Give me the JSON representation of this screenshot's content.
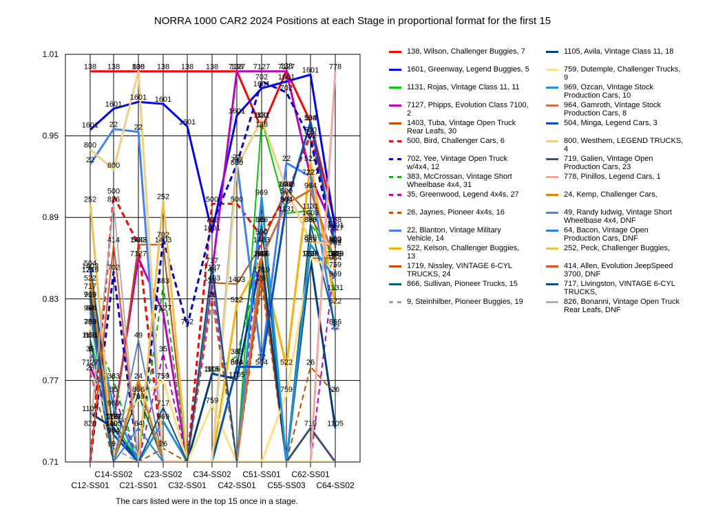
{
  "chart_data": {
    "type": "line",
    "title": "NORRA 1000 CAR2 2024  Positions at each Stage in proportional format for the first 15",
    "footnote": "The cars listed were in the top 15 once in a stage.",
    "categories": [
      "C12-SS01",
      "C14-SS02",
      "C21-SS01",
      "C23-SS02",
      "C32-SS01",
      "C34-SS02",
      "C42-SS01",
      "C51-SS01",
      "C55-SS03",
      "C62-SS01",
      "C64-SS02"
    ],
    "yticks": [
      "1.01",
      "0.95",
      "0.89",
      "0.83",
      "0.77",
      "0.71"
    ],
    "ylim": [
      0.71,
      1.01
    ],
    "grid": true,
    "legend_position": "right",
    "series": [
      {
        "name": "138, Wilson, Challenger Buggies, 7",
        "color": "#ff0000",
        "dash": false,
        "width": 3,
        "label": "138",
        "values": [
          0.9975,
          0.9975,
          0.9975,
          0.9975,
          0.9975,
          0.9975,
          0.9975,
          0.955,
          0.998,
          0.96,
          0.885
        ]
      },
      {
        "name": "1601, Greenway, Legend Buggies, 5",
        "color": "#0000ff",
        "dash": false,
        "width": 3,
        "label": "1601",
        "values": [
          0.9545,
          0.97,
          0.975,
          0.9735,
          0.957,
          0.879,
          0.965,
          0.985,
          0.99,
          0.995,
          0.881
        ]
      },
      {
        "name": "1131, Rojas, Vintage Class 11, 11",
        "color": "#00cc00",
        "dash": false,
        "width": 2,
        "label": "1131",
        "values": [
          0.8,
          0.74,
          0.71,
          0.71,
          0.71,
          0.71,
          0.71,
          0.962,
          0.893,
          0.895,
          0.835
        ]
      },
      {
        "name": "7127, Phipps, Evolution Class 7100, 2",
        "color": "#c000c0",
        "dash": false,
        "width": 3,
        "label": "7127",
        "values": [
          0.78,
          0.74,
          0.86,
          0.82,
          0.71,
          0.85,
          0.9975,
          0.9975,
          0.9975,
          0.92,
          0.879
        ]
      },
      {
        "name": "1403, Tuba, Vintage Open Truck Rear Leafs, 30",
        "color": "#c05000",
        "dash": false,
        "width": 2,
        "label": "1403",
        "values": [
          0.851,
          0.735,
          0.87,
          0.87,
          0.71,
          0.842,
          0.841,
          0.87,
          0.911,
          0.89,
          0.86
        ]
      },
      {
        "name": "500, Bird, Challenger Cars, 6",
        "color": "#ff0000",
        "dash": true,
        "width": 3,
        "label": "500",
        "values": [
          0.71,
          0.906,
          0.87,
          0.71,
          0.71,
          0.9,
          0.9,
          0.876,
          0.906,
          0.951,
          0.871
        ]
      },
      {
        "name": "702, Yee, Vintage Open Truck w/4x4, 12",
        "color": "#0000cc",
        "dash": true,
        "width": 3,
        "label": "702",
        "values": [
          0.71,
          0.85,
          0.71,
          0.874,
          0.81,
          0.885,
          0.929,
          0.99,
          0.982,
          0.947,
          0.868
        ]
      },
      {
        "name": "383, McCrossan, Vintage Short Wheelbase 4x4, 31",
        "color": "#00bb00",
        "dash": true,
        "width": 2,
        "label": "383",
        "values": [
          0.81,
          0.77,
          0.71,
          0.84,
          0.71,
          0.775,
          0.788,
          0.86,
          0.71,
          0.885,
          0.86
        ]
      },
      {
        "name": "35, Greenwood, Legend 4x4s, 27",
        "color": "#c000c0",
        "dash": true,
        "width": 2,
        "label": "35",
        "values": [
          0.79,
          0.76,
          0.71,
          0.79,
          0.71,
          0.84,
          0.71,
          0.885,
          0.71,
          0.71,
          0.86
        ]
      },
      {
        "name": "26, Jaynes, Pioneer 4x4s, 16",
        "color": "#c05000",
        "dash": true,
        "width": 2,
        "label": "26",
        "values": [
          0.776,
          0.71,
          0.71,
          0.72,
          0.71,
          0.83,
          0.71,
          0.842,
          0.71,
          0.78,
          0.76
        ]
      },
      {
        "name": "22, Blanton, Vintage Military Vehicle, 14",
        "color": "#4080ff",
        "dash": false,
        "width": 3,
        "label": "22",
        "values": [
          0.929,
          0.955,
          0.953,
          0.71,
          0.71,
          0.71,
          0.931,
          0.784,
          0.93,
          0.92,
          0.806
        ]
      },
      {
        "name": "522, Kelson, Challenger Buggies, 13",
        "color": "#ffb000",
        "dash": false,
        "width": 3,
        "label": "522",
        "values": [
          0.842,
          0.71,
          0.71,
          0.71,
          0.71,
          0.71,
          0.826,
          0.86,
          0.78,
          0.93,
          0.825
        ]
      },
      {
        "name": "1719, Nissley, VINTAGE 6-CYL TRUCKS, 24",
        "color": "#c05000",
        "dash": false,
        "width": 2,
        "label": "1719",
        "values": [
          0.848,
          0.71,
          0.71,
          0.71,
          0.71,
          0.71,
          0.71,
          0.848,
          0.71,
          0.86,
          0.86
        ]
      },
      {
        "name": "866, Sullivan, Pioneer Trucks, 15",
        "color": "#00607a",
        "dash": false,
        "width": 2,
        "label": "866",
        "values": [
          0.8,
          0.71,
          0.76,
          0.71,
          0.71,
          0.71,
          0.78,
          0.885,
          0.71,
          0.885,
          0.81
        ]
      },
      {
        "name": "9, Steinhilber, Pioneer Buggies, 19",
        "color": "#a0a0a0",
        "dash": true,
        "width": 2,
        "label": "9",
        "values": [
          0.79,
          0.72,
          0.71,
          0.71,
          0.71,
          0.71,
          0.71,
          0.71,
          0.71,
          0.71,
          0.71
        ]
      },
      {
        "name": "1105, Avila, Vintage Class 11, 18",
        "color": "#003f7f",
        "dash": false,
        "width": 3,
        "label": "1105",
        "values": [
          0.746,
          0.735,
          0.71,
          0.71,
          0.71,
          0.775,
          0.771,
          0.86,
          0.71,
          0.86,
          0.735
        ]
      },
      {
        "name": "759, Dutemple, Challenger Trucks, 9",
        "color": "#ffe080",
        "dash": false,
        "width": 3,
        "label": "759",
        "values": [
          0.81,
          0.74,
          0.755,
          0.77,
          0.71,
          0.752,
          0.71,
          0.71,
          0.76,
          0.86,
          0.852
        ]
      },
      {
        "name": "969, Ozcan, Vintage Stock Production Cars, 10",
        "color": "#2090e0",
        "dash": false,
        "width": 3,
        "label": "969",
        "values": [
          0.83,
          0.75,
          0.71,
          0.74,
          0.71,
          0.71,
          0.71,
          0.905,
          0.71,
          0.87,
          0.845
        ]
      },
      {
        "name": "964, Gamroth, Vintage Stock Production Cars, 8",
        "color": "#d07040",
        "dash": false,
        "width": 3,
        "label": "964",
        "values": [
          0.82,
          0.73,
          0.71,
          0.71,
          0.71,
          0.71,
          0.71,
          0.86,
          0.9,
          0.91,
          0.857
        ]
      },
      {
        "name": "504, Minga, Legend Cars, 3",
        "color": "#0050c0",
        "dash": false,
        "width": 3,
        "label": "504",
        "values": [
          0.853,
          0.73,
          0.71,
          0.71,
          0.71,
          0.71,
          0.78,
          0.78,
          0.9,
          0.96,
          0.869
        ]
      },
      {
        "name": "800, Westhem, LEGEND TRUCKS, 4",
        "color": "#f0d080",
        "dash": false,
        "width": 3,
        "label": "800",
        "values": [
          0.94,
          0.925,
          0.9975,
          0.71,
          0.71,
          0.71,
          0.927,
          0.962,
          0.911,
          0.872,
          0.87
        ]
      },
      {
        "name": "719, Galien, Vintage Open Production Cars, 23",
        "color": "#405070",
        "dash": false,
        "width": 3,
        "label": "719",
        "values": [
          0.83,
          0.71,
          0.71,
          0.71,
          0.71,
          0.71,
          0.71,
          0.71,
          0.71,
          0.735,
          0.71
        ]
      },
      {
        "name": "778, Pinillos, Legend Cars, 1",
        "color": "#f0a8a0",
        "dash": false,
        "width": 3,
        "label": "778",
        "values": [
          0.71,
          0.71,
          0.71,
          0.71,
          0.71,
          0.71,
          0.71,
          0.71,
          0.71,
          0.71,
          0.9975
        ]
      },
      {
        "name": "24, Kemp, Challenger Cars,",
        "color": "#e08000",
        "dash": false,
        "width": 3,
        "label": "24",
        "values": [
          0.848,
          0.71,
          0.77,
          0.71,
          0.71,
          0.71,
          0.71,
          0.71,
          0.71,
          0.71,
          0.71
        ]
      },
      {
        "name": "49, Randy ludwig, Vintage Short Wheelbase 4x4,  DNF",
        "color": "#6080c0",
        "dash": false,
        "width": 2,
        "label": "49",
        "values": [
          0.71,
          0.71,
          0.8,
          0.71,
          0.71,
          0.848,
          0.71,
          0.71,
          0.71,
          0.71,
          0.71
        ]
      },
      {
        "name": "64, Bacon, Vintage Open Production Cars,  DNF",
        "color": "#2080e0",
        "dash": false,
        "width": 2,
        "label": "64",
        "values": [
          0.82,
          0.71,
          0.735,
          0.71,
          0.71,
          0.71,
          0.71,
          0.71,
          0.71,
          0.71,
          0.71
        ]
      },
      {
        "name": "252, Peck, Challenger Buggies,",
        "color": "#f0c050",
        "dash": false,
        "width": 3,
        "label": "252",
        "values": [
          0.9,
          0.71,
          0.71,
          0.902,
          0.71,
          0.71,
          0.71,
          0.71,
          0.71,
          0.71,
          0.71
        ]
      },
      {
        "name": "414, Allen, Evolution JeepSpeed 3700,  DNF",
        "color": "#e05020",
        "dash": false,
        "width": 2,
        "label": "414",
        "values": [
          0.71,
          0.87,
          0.71,
          0.71,
          0.71,
          0.71,
          0.71,
          0.71,
          0.71,
          0.71,
          0.71
        ]
      },
      {
        "name": "717, Livingston, VINTAGE 6-CYL TRUCKS,",
        "color": "#105080",
        "dash": false,
        "width": 2,
        "label": "717",
        "values": [
          0.836,
          0.71,
          0.71,
          0.75,
          0.71,
          0.855,
          0.71,
          0.71,
          0.71,
          0.71,
          0.71
        ]
      },
      {
        "name": "826, Bonanni, Vintage Open Truck Rear Leafs,  DNF",
        "color": "#b0b0b0",
        "dash": false,
        "width": 2,
        "label": "826",
        "values": [
          0.735,
          0.9,
          0.71,
          0.71,
          0.71,
          0.71,
          0.71,
          0.71,
          0.71,
          0.71,
          0.71
        ]
      }
    ]
  }
}
